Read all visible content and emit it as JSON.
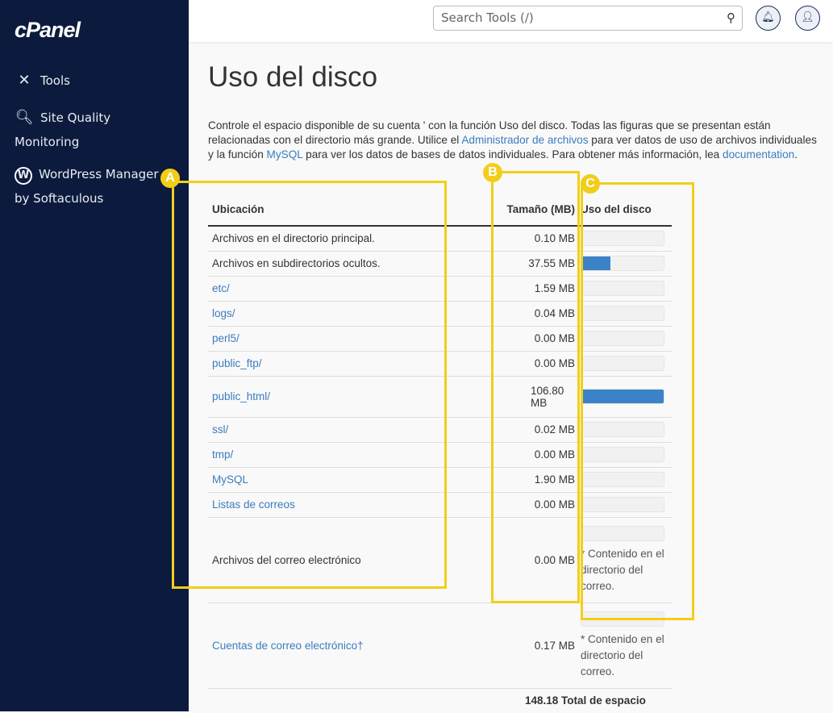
{
  "sidebar": {
    "logo": "cPanel",
    "items": [
      {
        "label": "Tools",
        "icon": "tools-icon"
      },
      {
        "label": "Site Quality Monitoring",
        "icon": "site-quality-icon"
      },
      {
        "label": "WordPress Manager by Softaculous",
        "icon": "wordpress-icon"
      }
    ]
  },
  "header": {
    "search_placeholder": "Search Tools (/)"
  },
  "page": {
    "title": "Uso del disco",
    "intro_1": "Controle el espacio disponible de su cuenta ' con la función Uso del disco. Todas las figuras que se presentan están relacionadas con el directorio más grande. Utilice el ",
    "link_file_manager": "Administrador de archivos",
    "intro_2": " para ver datos de uso de archivos individuales y la función ",
    "link_mysql": "MySQL",
    "intro_3": " para ver los datos de bases de datos individuales. Para obtener más información, lea ",
    "link_docs": "documentation",
    "intro_4": "."
  },
  "table": {
    "headers": [
      "Ubicación",
      "Tamaño (MB)",
      "Uso del disco"
    ],
    "rows": [
      {
        "location": "Archivos en el directorio principal.",
        "link": false,
        "size": "0.10 MB",
        "percent": 0.1
      },
      {
        "location": "Archivos en subdirectorios ocultos.",
        "link": false,
        "size": "37.55 MB",
        "percent": 35
      },
      {
        "location": "etc/",
        "link": true,
        "size": "1.59 MB",
        "percent": 1.5
      },
      {
        "location": "logs/",
        "link": true,
        "size": "0.04 MB",
        "percent": 0
      },
      {
        "location": "perl5/",
        "link": true,
        "size": "0.00 MB",
        "percent": 0
      },
      {
        "location": "public_ftp/",
        "link": true,
        "size": "0.00 MB",
        "percent": 0
      },
      {
        "location": "public_html/",
        "link": true,
        "size": "106.80 MB",
        "percent": 100
      },
      {
        "location": "ssl/",
        "link": true,
        "size": "0.02 MB",
        "percent": 0
      },
      {
        "location": "tmp/",
        "link": true,
        "size": "0.00 MB",
        "percent": 0
      },
      {
        "location": "MySQL",
        "link": true,
        "size": "1.90 MB",
        "percent": 1.8
      },
      {
        "location": "Listas de correos",
        "link": true,
        "size": "0.00 MB",
        "percent": 0
      },
      {
        "location": "Archivos del correo electrónico",
        "link": false,
        "size": "0.00 MB",
        "percent": 0,
        "note": "* Contenido en el directorio del correo."
      },
      {
        "location": "Cuentas de correo electrónico†",
        "link": true,
        "size": "0.17 MB",
        "percent": 0,
        "note": "* Contenido en el directorio del correo."
      }
    ],
    "total": "148.18 Total de espacio"
  },
  "annotations": [
    "A",
    "B",
    "C"
  ],
  "colors": {
    "sidebar": "#0c1b3d",
    "bar": "#3b83c8",
    "annotation": "#f2ce1a",
    "link": "#3b7cbd"
  }
}
